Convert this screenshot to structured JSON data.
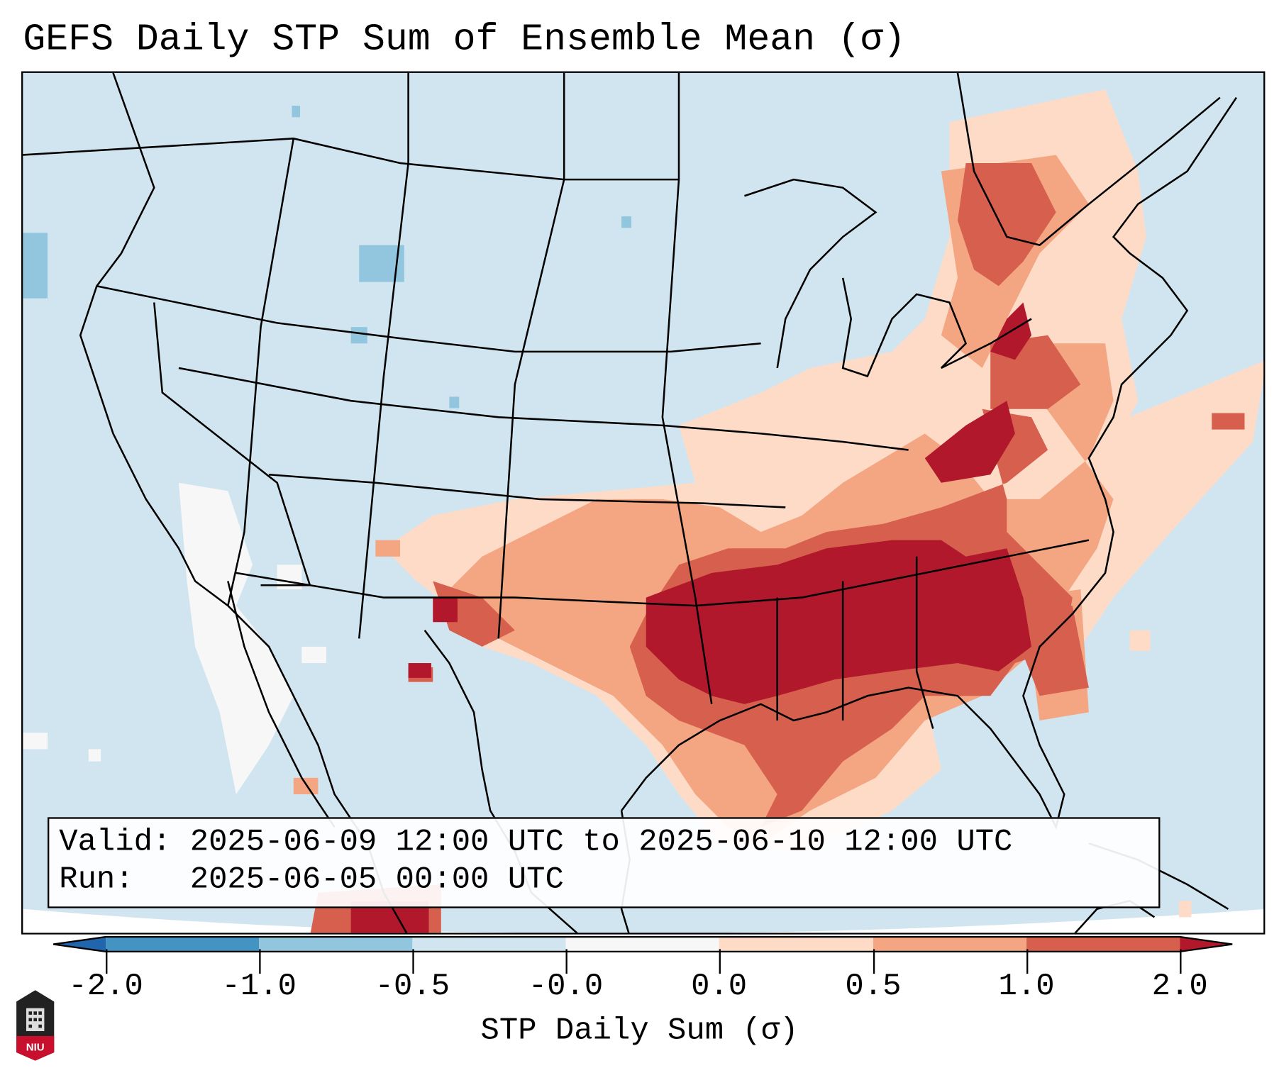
{
  "title": "GEFS Daily STP Sum of Ensemble Mean (σ)",
  "info": {
    "valid": "Valid: 2025-06-09 12:00 UTC to 2025-06-10 12:00 UTC",
    "run": "Run:   2025-06-05 00:00 UTC"
  },
  "colorbar": {
    "label": "STP Daily Sum (σ)",
    "ticks": [
      "-2.0",
      "-1.0",
      "-0.5",
      "-0.0",
      "0.0",
      "0.5",
      "1.0",
      "2.0"
    ],
    "colors": [
      "#2166ac",
      "#4393c3",
      "#92c5de",
      "#d1e5f0",
      "#f7f7f7",
      "#fddbc7",
      "#f4a582",
      "#d6604d",
      "#b2182b"
    ]
  },
  "logo": {
    "text": "NIU"
  }
}
